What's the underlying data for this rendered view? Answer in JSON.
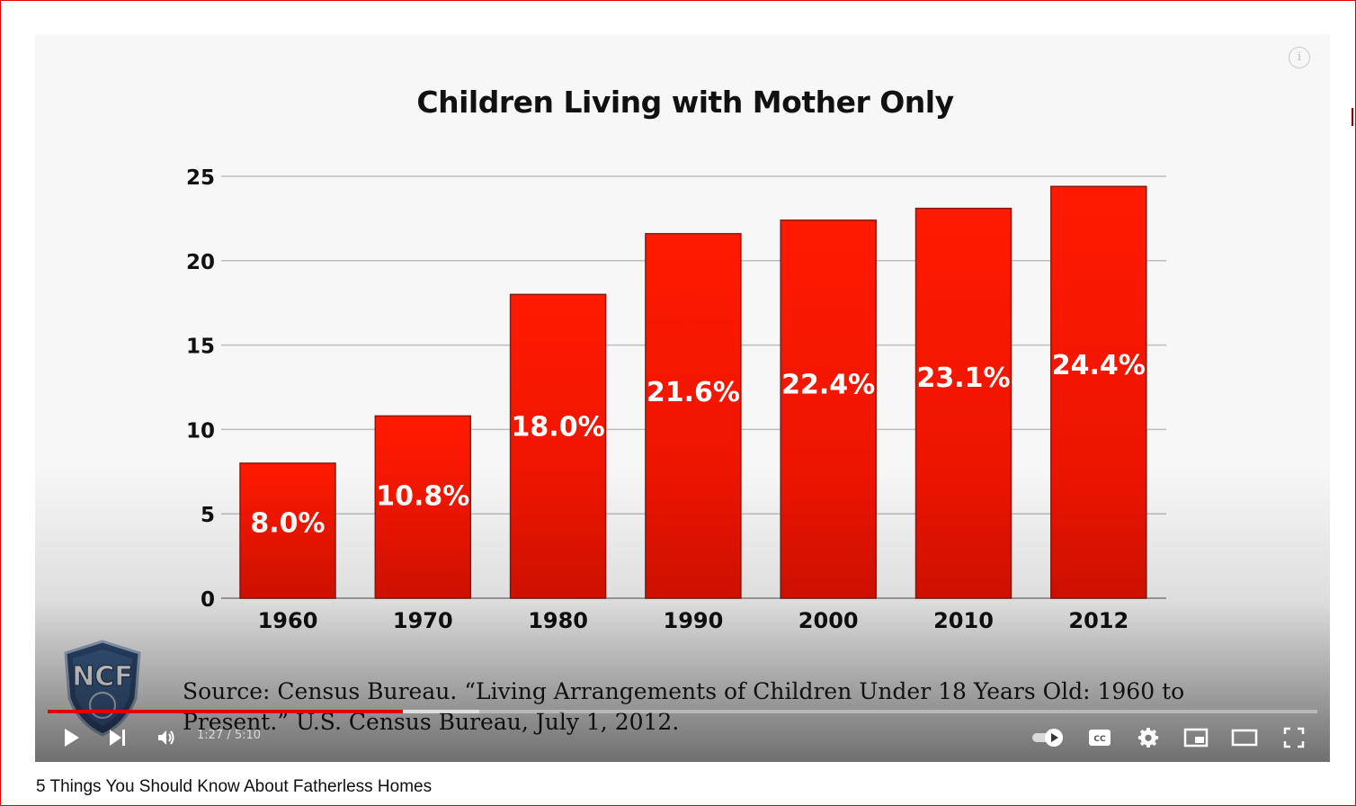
{
  "player": {
    "info_icon": "info-icon",
    "time_display": "1:27 / 5:10",
    "progress_fraction": 0.28,
    "buffered_fraction": 0.34,
    "progress_color": "#e00000",
    "controls": {
      "play_icon": "play-icon",
      "next_icon": "next-icon",
      "volume_icon": "volume-icon",
      "autoplay_icon": "autoplay-toggle-icon",
      "captions_icon": "cc-icon",
      "settings_icon": "gear-icon",
      "miniplayer_icon": "miniplayer-icon",
      "theater_icon": "theater-mode-icon",
      "fullscreen_icon": "fullscreen-icon"
    }
  },
  "slide": {
    "source_text": "Source: Census Bureau. “Living Arrangements of Children Under 18 Years Old: 1960 to Present.” U.S. Census Bureau, July 1, 2012.",
    "logo_text": "NCF"
  },
  "chart_data": {
    "type": "bar",
    "title": "Children Living with Mother Only",
    "xlabel": "",
    "ylabel": "",
    "categories": [
      "1960",
      "1970",
      "1980",
      "1990",
      "2000",
      "2010",
      "2012"
    ],
    "values": [
      8.0,
      10.8,
      18.0,
      21.6,
      22.4,
      23.1,
      24.4
    ],
    "data_labels": [
      "8.0%",
      "10.8%",
      "18.0%",
      "21.6%",
      "22.4%",
      "23.1%",
      "24.4%"
    ],
    "yticks": [
      "0",
      "5",
      "10",
      "15",
      "20",
      "25"
    ],
    "ylim": [
      0,
      25
    ],
    "grid": true,
    "bar_color": "#ff1a00"
  },
  "video_title": "5 Things You Should Know About Fatherless Homes"
}
